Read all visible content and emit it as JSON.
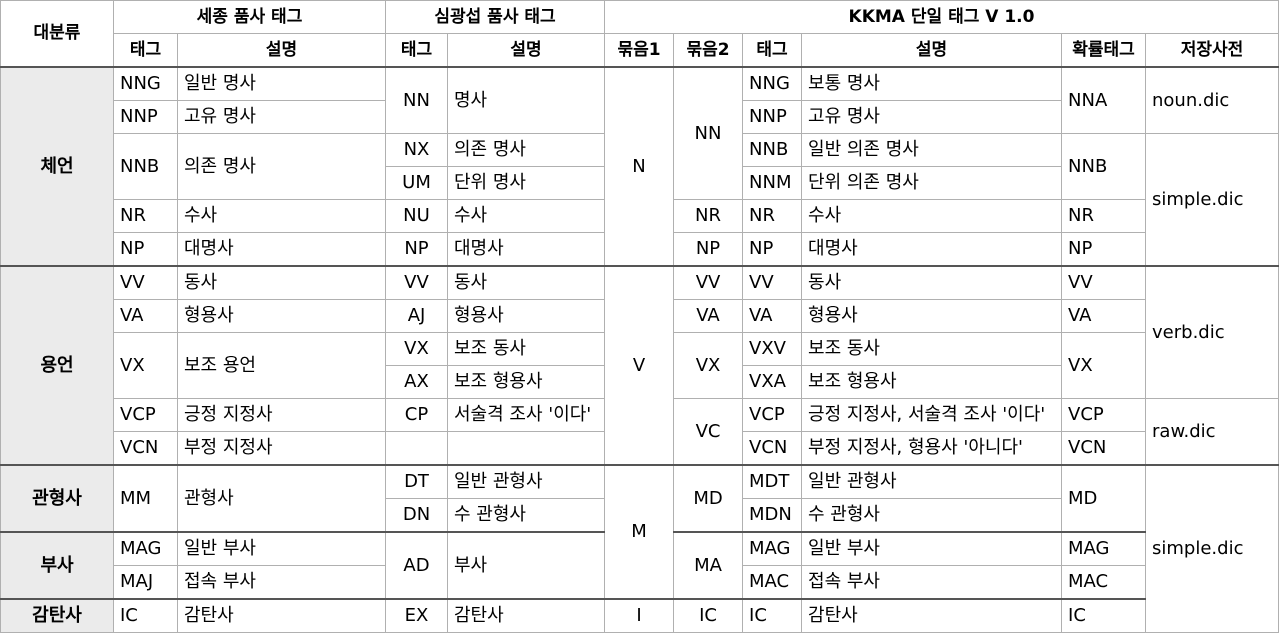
{
  "header": {
    "major": "대분류",
    "sejong": "세종 품사 태그",
    "simkwang": "심광섭 품사 태그",
    "kkma": "KKMA 단일 태그 V 1.0",
    "tag": "태그",
    "desc": "설명",
    "group1": "묶음1",
    "group2": "묶음2",
    "prob": "확률태그",
    "dict": "저장사전"
  },
  "major": {
    "noun": "체언",
    "verb": "용언",
    "det": "관형사",
    "adv": "부사",
    "intj": "감탄사"
  },
  "sejong": {
    "nng": [
      "NNG",
      "일반 명사"
    ],
    "nnp": [
      "NNP",
      "고유 명사"
    ],
    "nnb": [
      "NNB",
      "의존 명사"
    ],
    "nr": [
      "NR",
      "수사"
    ],
    "np": [
      "NP",
      "대명사"
    ],
    "vv": [
      "VV",
      "동사"
    ],
    "va": [
      "VA",
      "형용사"
    ],
    "vx": [
      "VX",
      "보조 용언"
    ],
    "vcp": [
      "VCP",
      "긍정 지정사"
    ],
    "vcn": [
      "VCN",
      "부정 지정사"
    ],
    "mm": [
      "MM",
      "관형사"
    ],
    "mag": [
      "MAG",
      "일반 부사"
    ],
    "maj": [
      "MAJ",
      "접속 부사"
    ],
    "ic": [
      "IC",
      "감탄사"
    ]
  },
  "simkwang": {
    "nn": [
      "NN",
      "명사"
    ],
    "nx": [
      "NX",
      "의존 명사"
    ],
    "um": [
      "UM",
      "단위 명사"
    ],
    "nu": [
      "NU",
      "수사"
    ],
    "np": [
      "NP",
      "대명사"
    ],
    "vv": [
      "VV",
      "동사"
    ],
    "aj": [
      "AJ",
      "형용사"
    ],
    "vx": [
      "VX",
      "보조 동사"
    ],
    "ax": [
      "AX",
      "보조 형용사"
    ],
    "cp": [
      "CP",
      "서술격 조사 '이다'"
    ],
    "dt": [
      "DT",
      "일반 관형사"
    ],
    "dn": [
      "DN",
      "수 관형사"
    ],
    "ad": [
      "AD",
      "부사"
    ],
    "ex": [
      "EX",
      "감탄사"
    ]
  },
  "kkma": {
    "g1": {
      "n": "N",
      "v": "V",
      "m": "M",
      "i": "I"
    },
    "g2": {
      "nn": "NN",
      "nr": "NR",
      "np": "NP",
      "vv": "VV",
      "va": "VA",
      "vx": "VX",
      "vc": "VC",
      "md": "MD",
      "ma": "MA",
      "ic": "IC"
    },
    "rows": {
      "nng": [
        "NNG",
        "보통 명사"
      ],
      "nnp": [
        "NNP",
        "고유 명사"
      ],
      "nnb": [
        "NNB",
        "일반 의존 명사"
      ],
      "nnm": [
        "NNM",
        "단위 의존 명사"
      ],
      "nr": [
        "NR",
        "수사"
      ],
      "np": [
        "NP",
        "대명사"
      ],
      "vv": [
        "VV",
        "동사"
      ],
      "va": [
        "VA",
        "형용사"
      ],
      "vxv": [
        "VXV",
        "보조 동사"
      ],
      "vxa": [
        "VXA",
        "보조 형용사"
      ],
      "vcp": [
        "VCP",
        "긍정 지정사, 서술격 조사 '이다'"
      ],
      "vcn": [
        "VCN",
        "부정 지정사, 형용사 '아니다'"
      ],
      "mdt": [
        "MDT",
        "일반 관형사"
      ],
      "mdn": [
        "MDN",
        "수 관형사"
      ],
      "mag": [
        "MAG",
        "일반 부사"
      ],
      "mac": [
        "MAC",
        "접속 부사"
      ],
      "ic": [
        "IC",
        "감탄사"
      ]
    },
    "prob": {
      "nna": "NNA",
      "nnb": "NNB",
      "nr": "NR",
      "np": "NP",
      "vv": "VV",
      "va": "VA",
      "vx": "VX",
      "vcp": "VCP",
      "vcn": "VCN",
      "md": "MD",
      "mag": "MAG",
      "mac": "MAC",
      "ic": "IC"
    },
    "dict": {
      "noun": "noun.dic",
      "simple1": "simple.dic",
      "verb": "verb.dic",
      "raw": "raw.dic",
      "simple2": "simple.dic"
    }
  }
}
